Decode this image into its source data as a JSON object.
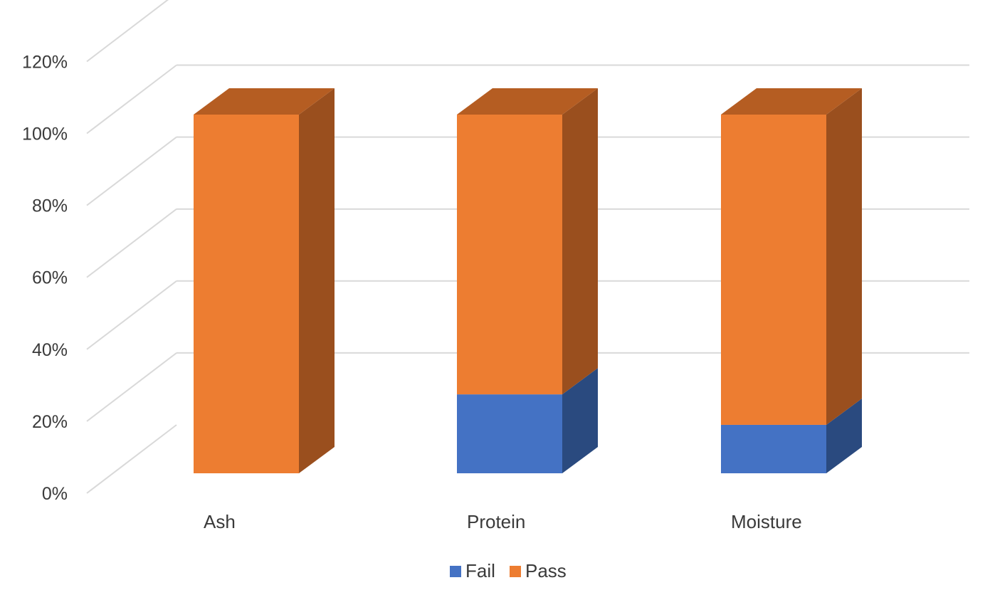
{
  "chart_data": {
    "type": "bar",
    "stacked": true,
    "three_d": true,
    "title": "",
    "xlabel": "",
    "ylabel": "",
    "categories": [
      "Ash",
      "Protein",
      "Moisture"
    ],
    "series": [
      {
        "name": "Fail",
        "values": [
          0,
          22,
          13.5
        ],
        "color": "#4472c4",
        "side_color": "#2a4a7f"
      },
      {
        "name": "Pass",
        "values": [
          100,
          78,
          86.5
        ],
        "color": "#ed7d31",
        "top_color": "#b55d22",
        "side_color": "#9a4f1e"
      }
    ],
    "ylim": [
      0,
      120
    ],
    "yticks": [
      0,
      20,
      40,
      60,
      80,
      100,
      120
    ],
    "ytick_labels": [
      "0%",
      "20%",
      "40%",
      "60%",
      "80%",
      "100%",
      "120%"
    ],
    "grid": true,
    "grid_color": "#d9d9d9",
    "legend_position": "bottom"
  }
}
